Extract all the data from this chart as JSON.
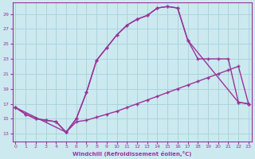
{
  "bg_color": "#cce9f0",
  "grid_color": "#aad4dc",
  "line_color": "#993399",
  "xlabel": "Windchill (Refroidissement éolien,°C)",
  "xlim": [
    -0.3,
    23.3
  ],
  "ylim": [
    12.0,
    30.5
  ],
  "xticks": [
    0,
    1,
    2,
    3,
    4,
    5,
    6,
    7,
    8,
    9,
    10,
    11,
    12,
    13,
    14,
    15,
    16,
    17,
    18,
    19,
    20,
    21,
    22,
    23
  ],
  "yticks": [
    13,
    15,
    17,
    19,
    21,
    23,
    25,
    27,
    29
  ],
  "curve_upper_x": [
    0,
    1,
    2,
    3,
    4,
    5,
    6,
    7,
    8,
    9,
    10,
    11,
    12,
    13,
    14,
    15,
    16,
    17,
    22,
    23
  ],
  "curve_upper_y": [
    16.5,
    15.6,
    15.0,
    14.8,
    14.6,
    13.2,
    15.0,
    18.5,
    22.8,
    24.5,
    26.2,
    27.5,
    28.3,
    28.8,
    29.8,
    30.0,
    29.8,
    25.5,
    17.2,
    17.0
  ],
  "curve_mid_x": [
    0,
    5,
    6,
    7,
    8,
    9,
    10,
    11,
    12,
    13,
    14,
    15,
    16,
    17,
    18,
    19,
    20,
    21,
    22,
    23
  ],
  "curve_mid_y": [
    16.5,
    13.2,
    15.0,
    18.5,
    22.8,
    24.5,
    26.2,
    27.5,
    28.3,
    28.8,
    29.8,
    30.0,
    29.8,
    25.5,
    23.0,
    23.0,
    23.0,
    23.0,
    17.2,
    17.0
  ],
  "curve_lower_x": [
    0,
    1,
    2,
    3,
    4,
    5,
    6,
    7,
    8,
    9,
    10,
    11,
    12,
    13,
    14,
    15,
    16,
    17,
    18,
    19,
    20,
    21,
    22,
    23
  ],
  "curve_lower_y": [
    16.5,
    15.6,
    15.0,
    14.8,
    14.6,
    13.2,
    14.6,
    14.8,
    15.2,
    15.6,
    16.0,
    16.5,
    17.0,
    17.5,
    18.0,
    18.5,
    19.0,
    19.5,
    20.0,
    20.5,
    21.0,
    21.5,
    22.0,
    17.0
  ]
}
